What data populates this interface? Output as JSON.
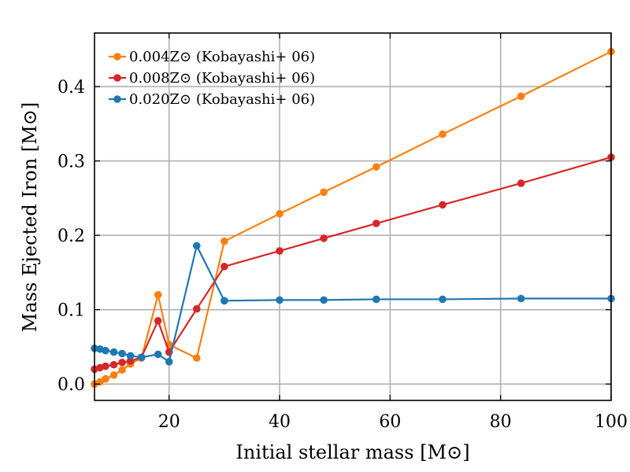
{
  "chart_data": {
    "type": "line",
    "title": "",
    "xlabel": "Initial stellar mass [M⊙]",
    "ylabel": "Mass Ejected Iron [M⊙]",
    "xlim": [
      6.5,
      100
    ],
    "ylim": [
      -0.022,
      0.472
    ],
    "xticks": [
      20,
      40,
      60,
      80,
      100
    ],
    "yticks": [
      0.0,
      0.1,
      0.2,
      0.3,
      0.4
    ],
    "xtick_labels": [
      "20",
      "40",
      "60",
      "80",
      "100"
    ],
    "ytick_labels": [
      "0.0",
      "0.1",
      "0.2",
      "0.3",
      "0.4"
    ],
    "grid": true,
    "legend_position": "top-left",
    "series": [
      {
        "name": "0.004Z⊙ (Kobayashi+ 06)",
        "color": "#ff7f0e",
        "x": [
          6.5,
          7.5,
          8.5,
          10,
          11.5,
          13,
          15,
          18,
          20,
          25,
          30,
          40,
          48,
          57.5,
          69.5,
          83.7,
          100
        ],
        "y": [
          0.0,
          0.003,
          0.007,
          0.012,
          0.019,
          0.027,
          0.035,
          0.12,
          0.053,
          0.035,
          0.192,
          0.229,
          0.258,
          0.292,
          0.336,
          0.387,
          0.447
        ]
      },
      {
        "name": "0.008Z⊙ (Kobayashi+ 06)",
        "color": "#d62728",
        "x": [
          6.5,
          7.5,
          8.5,
          10,
          11.5,
          13,
          15,
          18,
          20,
          25,
          30,
          40,
          48,
          57.5,
          69.5,
          83.7,
          100
        ],
        "y": [
          0.02,
          0.022,
          0.024,
          0.026,
          0.029,
          0.031,
          0.036,
          0.085,
          0.043,
          0.101,
          0.158,
          0.179,
          0.196,
          0.216,
          0.241,
          0.27,
          0.305
        ]
      },
      {
        "name": "0.020Z⊙ (Kobayashi+ 06)",
        "color": "#1f77b4",
        "x": [
          6.5,
          7.5,
          8.5,
          10,
          11.5,
          13,
          15,
          18,
          20,
          25,
          30,
          40,
          48,
          57.5,
          69.5,
          83.7,
          100
        ],
        "y": [
          0.048,
          0.047,
          0.045,
          0.043,
          0.041,
          0.038,
          0.036,
          0.04,
          0.03,
          0.186,
          0.112,
          0.113,
          0.113,
          0.114,
          0.114,
          0.115,
          0.115
        ]
      }
    ]
  }
}
